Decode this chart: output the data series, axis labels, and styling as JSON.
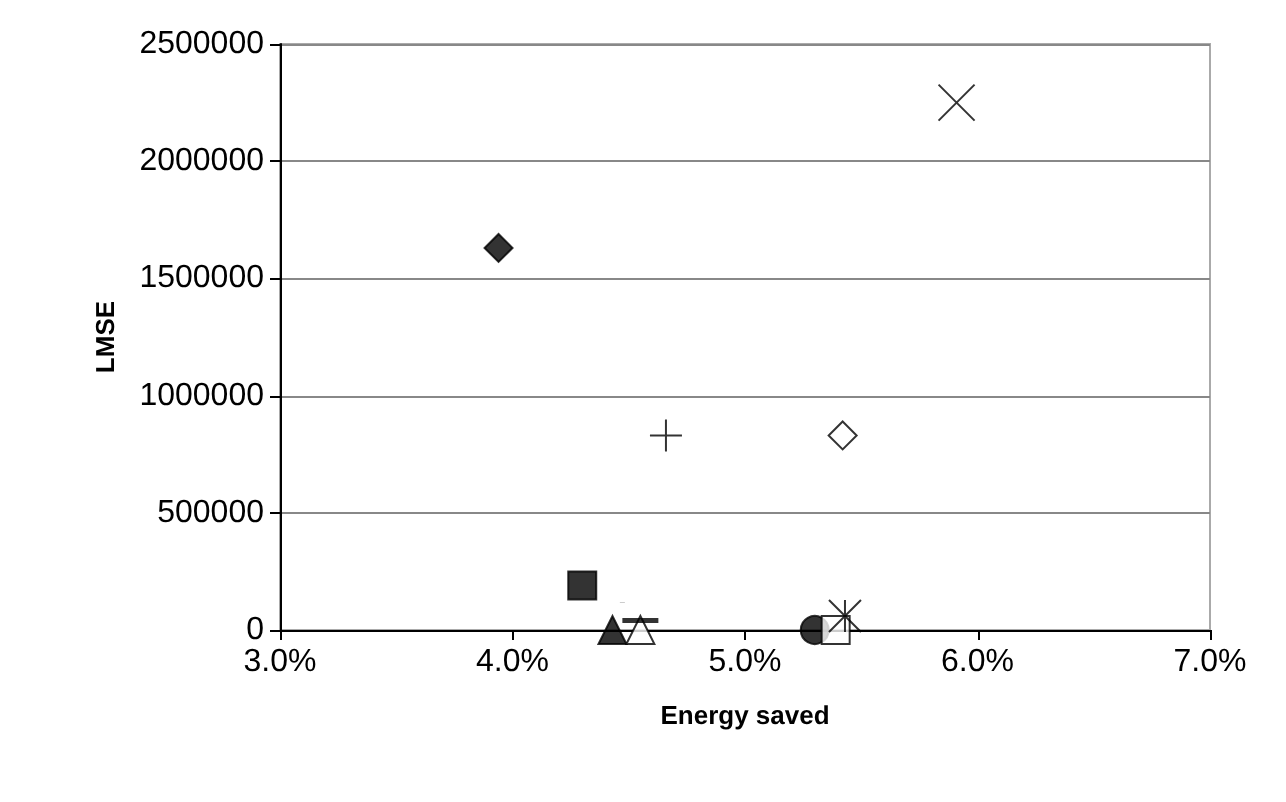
{
  "chart_data": {
    "type": "scatter",
    "xlabel": "Energy saved",
    "ylabel": "LMSE",
    "xlim": [
      3,
      7
    ],
    "xticks": [
      {
        "value": 3,
        "label": "3.0%"
      },
      {
        "value": 4,
        "label": "4.0%"
      },
      {
        "value": 5,
        "label": "5.0%"
      },
      {
        "value": 6,
        "label": "6.0%"
      },
      {
        "value": 7,
        "label": "7.0%"
      }
    ],
    "ylim": [
      0,
      2500000
    ],
    "yticks": [
      0,
      500000,
      1000000,
      1500000,
      2000000,
      2500000
    ],
    "grid": "y",
    "series": [
      {
        "color": "#000000",
        "marker": "diamond",
        "x": [
          3.94
        ],
        "values": [
          1630000
        ]
      },
      {
        "color": "#000000",
        "marker": "cross",
        "x": [
          5.91
        ],
        "values": [
          2250000
        ]
      },
      {
        "color": "#000000",
        "marker": "cross",
        "x": [
          4.66
        ],
        "values": [
          830000
        ]
      },
      {
        "color": "#000000",
        "marker": "diamond",
        "x": [
          5.42
        ],
        "values": [
          830000
        ]
      },
      {
        "color": "#000000",
        "marker": "square",
        "x": [
          4.3
        ],
        "values": [
          190000
        ]
      },
      {
        "color": "#000000",
        "marker": "triangle",
        "x": [
          4.43
        ],
        "values": [
          0
        ]
      },
      {
        "color": "#000000",
        "marker": "triangle",
        "x": [
          4.55
        ],
        "values": [
          0
        ]
      },
      {
        "color": "#000000",
        "x": [
          4.55
        ],
        "values": [
          40000
        ]
      },
      {
        "color": "#000000",
        "marker": "circle",
        "x": [
          5.3
        ],
        "values": [
          0
        ]
      },
      {
        "color": "#000000",
        "marker": "square",
        "x": [
          5.39
        ],
        "values": [
          0
        ]
      },
      {
        "color": "#000000",
        "marker": "cross",
        "x": [
          5.43
        ],
        "values": [
          60000
        ]
      }
    ]
  }
}
